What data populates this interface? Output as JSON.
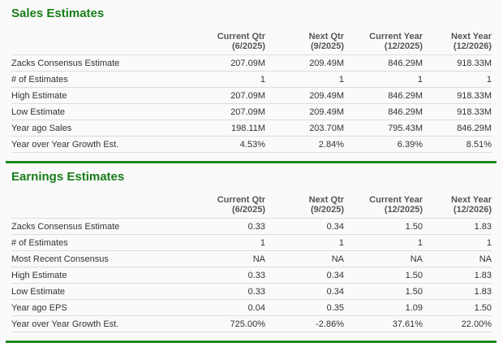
{
  "columns": [
    {
      "line1": "Current Qtr",
      "line2": "(6/2025)"
    },
    {
      "line1": "Next Qtr",
      "line2": "(9/2025)"
    },
    {
      "line1": "Current Year",
      "line2": "(12/2025)"
    },
    {
      "line1": "Next Year",
      "line2": "(12/2026)"
    }
  ],
  "sales": {
    "title": "Sales Estimates",
    "rows": [
      {
        "label": "Zacks Consensus Estimate",
        "values": [
          "207.09M",
          "209.49M",
          "846.29M",
          "918.33M"
        ]
      },
      {
        "label": "# of Estimates",
        "values": [
          "1",
          "1",
          "1",
          "1"
        ]
      },
      {
        "label": "High Estimate",
        "values": [
          "207.09M",
          "209.49M",
          "846.29M",
          "918.33M"
        ]
      },
      {
        "label": "Low Estimate",
        "values": [
          "207.09M",
          "209.49M",
          "846.29M",
          "918.33M"
        ]
      },
      {
        "label": "Year ago Sales",
        "values": [
          "198.11M",
          "203.70M",
          "795.43M",
          "846.29M"
        ]
      },
      {
        "label": "Year over Year Growth Est.",
        "values": [
          "4.53%",
          "2.84%",
          "6.39%",
          "8.51%"
        ]
      }
    ]
  },
  "earnings": {
    "title": "Earnings Estimates",
    "rows": [
      {
        "label": "Zacks Consensus Estimate",
        "values": [
          "0.33",
          "0.34",
          "1.50",
          "1.83"
        ]
      },
      {
        "label": "# of Estimates",
        "values": [
          "1",
          "1",
          "1",
          "1"
        ]
      },
      {
        "label": "Most Recent Consensus",
        "values": [
          "NA",
          "NA",
          "NA",
          "NA"
        ]
      },
      {
        "label": "High Estimate",
        "values": [
          "0.33",
          "0.34",
          "1.50",
          "1.83"
        ]
      },
      {
        "label": "Low Estimate",
        "values": [
          "0.33",
          "0.34",
          "1.50",
          "1.83"
        ]
      },
      {
        "label": "Year ago EPS",
        "values": [
          "0.04",
          "0.35",
          "1.09",
          "1.50"
        ]
      },
      {
        "label": "Year over Year Growth Est.",
        "values": [
          "725.00%",
          "-2.86%",
          "37.61%",
          "22.00%"
        ]
      }
    ]
  },
  "colors": {
    "accent": "#1a7d1a",
    "divider": "#1f8a1f"
  }
}
